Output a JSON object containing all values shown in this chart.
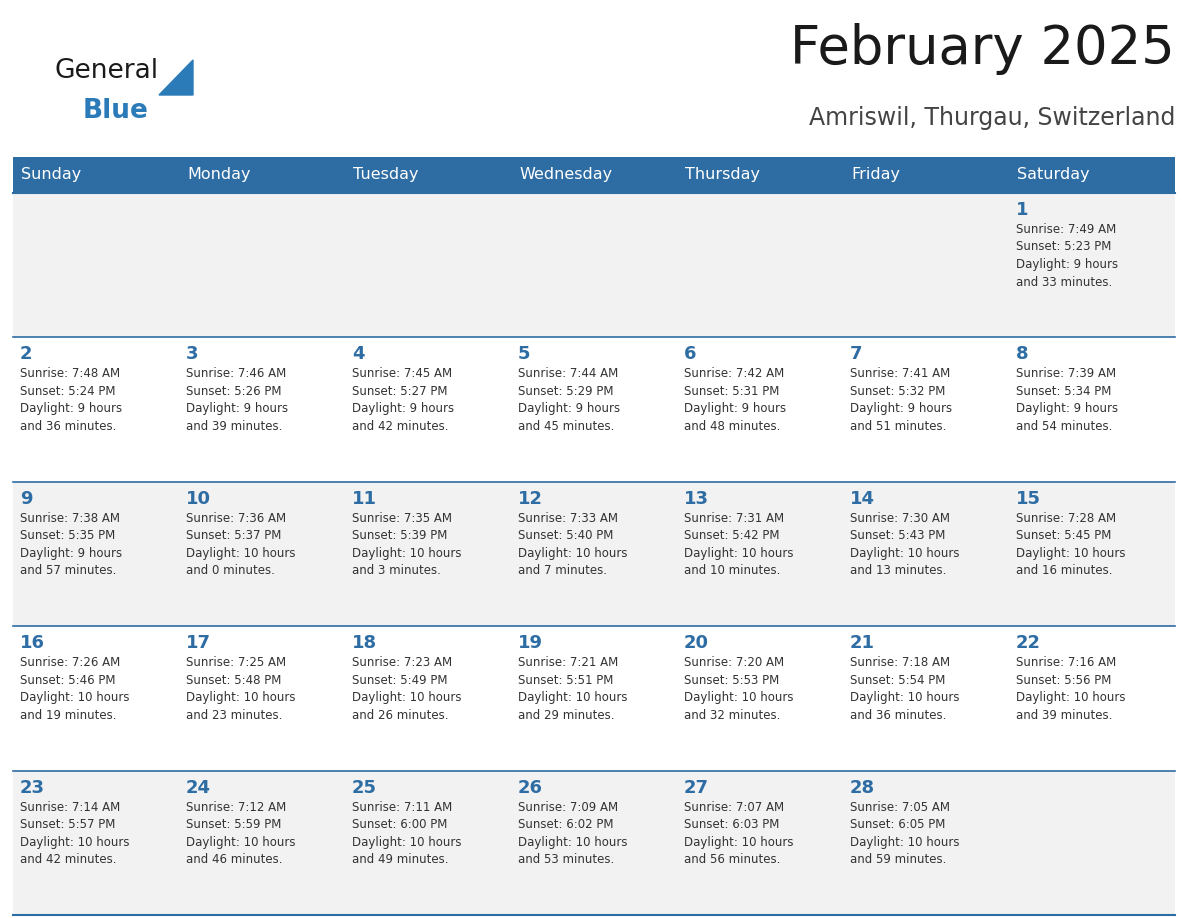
{
  "title": "February 2025",
  "subtitle": "Amriswil, Thurgau, Switzerland",
  "days_of_week": [
    "Sunday",
    "Monday",
    "Tuesday",
    "Wednesday",
    "Thursday",
    "Friday",
    "Saturday"
  ],
  "header_bg": "#2E6DA4",
  "header_text": "#FFFFFF",
  "cell_bg_odd": "#F2F2F2",
  "cell_bg_even": "#FFFFFF",
  "grid_line_color": "#2E6DA4",
  "title_color": "#1a1a1a",
  "subtitle_color": "#444444",
  "day_number_color": "#2E6DA4",
  "cell_text_color": "#333333",
  "logo_general_color": "#1a1a1a",
  "logo_blue_color": "#2B7BB9",
  "calendar": [
    [
      null,
      null,
      null,
      null,
      null,
      null,
      {
        "day": 1,
        "sunrise": "7:49 AM",
        "sunset": "5:23 PM",
        "daylight": "9 hours",
        "daylight2": "and 33 minutes."
      }
    ],
    [
      {
        "day": 2,
        "sunrise": "7:48 AM",
        "sunset": "5:24 PM",
        "daylight": "9 hours",
        "daylight2": "and 36 minutes."
      },
      {
        "day": 3,
        "sunrise": "7:46 AM",
        "sunset": "5:26 PM",
        "daylight": "9 hours",
        "daylight2": "and 39 minutes."
      },
      {
        "day": 4,
        "sunrise": "7:45 AM",
        "sunset": "5:27 PM",
        "daylight": "9 hours",
        "daylight2": "and 42 minutes."
      },
      {
        "day": 5,
        "sunrise": "7:44 AM",
        "sunset": "5:29 PM",
        "daylight": "9 hours",
        "daylight2": "and 45 minutes."
      },
      {
        "day": 6,
        "sunrise": "7:42 AM",
        "sunset": "5:31 PM",
        "daylight": "9 hours",
        "daylight2": "and 48 minutes."
      },
      {
        "day": 7,
        "sunrise": "7:41 AM",
        "sunset": "5:32 PM",
        "daylight": "9 hours",
        "daylight2": "and 51 minutes."
      },
      {
        "day": 8,
        "sunrise": "7:39 AM",
        "sunset": "5:34 PM",
        "daylight": "9 hours",
        "daylight2": "and 54 minutes."
      }
    ],
    [
      {
        "day": 9,
        "sunrise": "7:38 AM",
        "sunset": "5:35 PM",
        "daylight": "9 hours",
        "daylight2": "and 57 minutes."
      },
      {
        "day": 10,
        "sunrise": "7:36 AM",
        "sunset": "5:37 PM",
        "daylight": "10 hours",
        "daylight2": "and 0 minutes."
      },
      {
        "day": 11,
        "sunrise": "7:35 AM",
        "sunset": "5:39 PM",
        "daylight": "10 hours",
        "daylight2": "and 3 minutes."
      },
      {
        "day": 12,
        "sunrise": "7:33 AM",
        "sunset": "5:40 PM",
        "daylight": "10 hours",
        "daylight2": "and 7 minutes."
      },
      {
        "day": 13,
        "sunrise": "7:31 AM",
        "sunset": "5:42 PM",
        "daylight": "10 hours",
        "daylight2": "and 10 minutes."
      },
      {
        "day": 14,
        "sunrise": "7:30 AM",
        "sunset": "5:43 PM",
        "daylight": "10 hours",
        "daylight2": "and 13 minutes."
      },
      {
        "day": 15,
        "sunrise": "7:28 AM",
        "sunset": "5:45 PM",
        "daylight": "10 hours",
        "daylight2": "and 16 minutes."
      }
    ],
    [
      {
        "day": 16,
        "sunrise": "7:26 AM",
        "sunset": "5:46 PM",
        "daylight": "10 hours",
        "daylight2": "and 19 minutes."
      },
      {
        "day": 17,
        "sunrise": "7:25 AM",
        "sunset": "5:48 PM",
        "daylight": "10 hours",
        "daylight2": "and 23 minutes."
      },
      {
        "day": 18,
        "sunrise": "7:23 AM",
        "sunset": "5:49 PM",
        "daylight": "10 hours",
        "daylight2": "and 26 minutes."
      },
      {
        "day": 19,
        "sunrise": "7:21 AM",
        "sunset": "5:51 PM",
        "daylight": "10 hours",
        "daylight2": "and 29 minutes."
      },
      {
        "day": 20,
        "sunrise": "7:20 AM",
        "sunset": "5:53 PM",
        "daylight": "10 hours",
        "daylight2": "and 32 minutes."
      },
      {
        "day": 21,
        "sunrise": "7:18 AM",
        "sunset": "5:54 PM",
        "daylight": "10 hours",
        "daylight2": "and 36 minutes."
      },
      {
        "day": 22,
        "sunrise": "7:16 AM",
        "sunset": "5:56 PM",
        "daylight": "10 hours",
        "daylight2": "and 39 minutes."
      }
    ],
    [
      {
        "day": 23,
        "sunrise": "7:14 AM",
        "sunset": "5:57 PM",
        "daylight": "10 hours",
        "daylight2": "and 42 minutes."
      },
      {
        "day": 24,
        "sunrise": "7:12 AM",
        "sunset": "5:59 PM",
        "daylight": "10 hours",
        "daylight2": "and 46 minutes."
      },
      {
        "day": 25,
        "sunrise": "7:11 AM",
        "sunset": "6:00 PM",
        "daylight": "10 hours",
        "daylight2": "and 49 minutes."
      },
      {
        "day": 26,
        "sunrise": "7:09 AM",
        "sunset": "6:02 PM",
        "daylight": "10 hours",
        "daylight2": "and 53 minutes."
      },
      {
        "day": 27,
        "sunrise": "7:07 AM",
        "sunset": "6:03 PM",
        "daylight": "10 hours",
        "daylight2": "and 56 minutes."
      },
      {
        "day": 28,
        "sunrise": "7:05 AM",
        "sunset": "6:05 PM",
        "daylight": "10 hours",
        "daylight2": "and 59 minutes."
      },
      null
    ]
  ]
}
